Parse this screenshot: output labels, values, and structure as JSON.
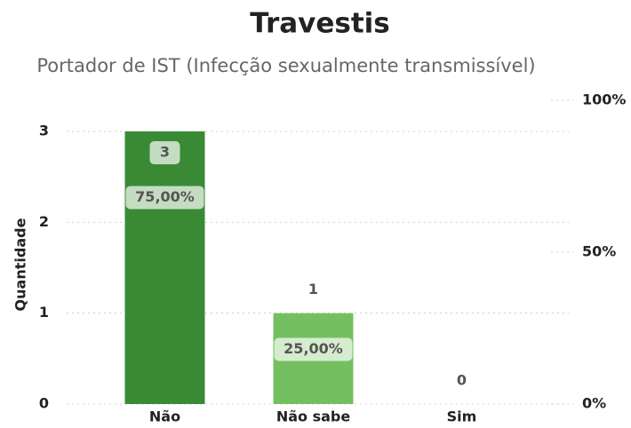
{
  "chart_data": {
    "type": "bar",
    "title": "Travestis",
    "subtitle": "Portador de IST (Infecção sexualmente transmissível)",
    "y_label": "Quantidade",
    "categories": [
      "Não",
      "Não sabe",
      "Sim"
    ],
    "series": [
      {
        "name": "Quantidade",
        "values": [
          3,
          1,
          0
        ],
        "colors": [
          "#3a8a35",
          "#74c060",
          "#a5d98f"
        ]
      },
      {
        "name": "%",
        "axis": "y2",
        "values": [
          75,
          25,
          0
        ],
        "value_labels": [
          "75,00%",
          "25,00%",
          null
        ]
      }
    ],
    "ylim": [
      0,
      3
    ],
    "yticks": [
      0,
      1,
      2,
      3
    ],
    "y2lim": [
      0,
      100
    ],
    "y2ticks": [
      {
        "value": 0,
        "label": "0%"
      },
      {
        "value": 50,
        "label": "50%"
      },
      {
        "value": 100,
        "label": "100%"
      }
    ],
    "grid": true
  }
}
